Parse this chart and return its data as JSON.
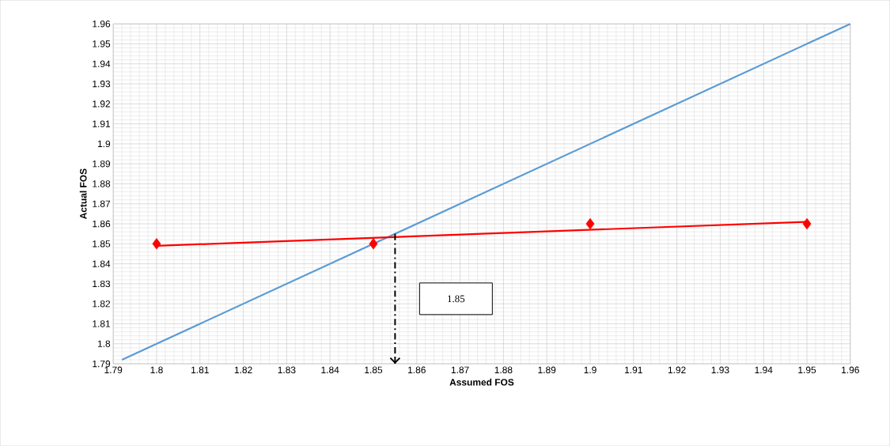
{
  "chart_data": {
    "type": "scatter",
    "xlabel": "Assumed FOS",
    "ylabel": "Actual FOS",
    "x": [
      1.8,
      1.85,
      1.9,
      1.95
    ],
    "series": [
      {
        "type": "line",
        "color": "#5b9bd5",
        "x": [
          1.792,
          1.96
        ],
        "values": [
          1.792,
          1.96
        ],
        "marker": "none"
      },
      {
        "type": "line",
        "color": "#ff0000",
        "x": [
          1.8,
          1.95
        ],
        "values": [
          1.849,
          1.861
        ],
        "marker": "none"
      },
      {
        "type": "scatter",
        "color": "#ff0000",
        "values": [
          1.85,
          1.85,
          1.86,
          1.86
        ],
        "marker": "diamond"
      }
    ],
    "ref_lines": [
      {
        "axis": "x",
        "value": 1.855,
        "label": "1.85",
        "color": "#000000",
        "line_style": "dashed"
      }
    ],
    "xlim": [
      1.79,
      1.96
    ],
    "ylim": [
      1.79,
      1.96
    ],
    "xticks": [
      1.79,
      1.8,
      1.81,
      1.82,
      1.83,
      1.84,
      1.85,
      1.86,
      1.87,
      1.88,
      1.89,
      1.9,
      1.91,
      1.92,
      1.93,
      1.94,
      1.95,
      1.96
    ],
    "yticks": [
      1.79,
      1.8,
      1.81,
      1.82,
      1.83,
      1.84,
      1.85,
      1.86,
      1.87,
      1.88,
      1.89,
      1.9,
      1.91,
      1.92,
      1.93,
      1.94,
      1.95,
      1.96
    ],
    "grid": true
  }
}
